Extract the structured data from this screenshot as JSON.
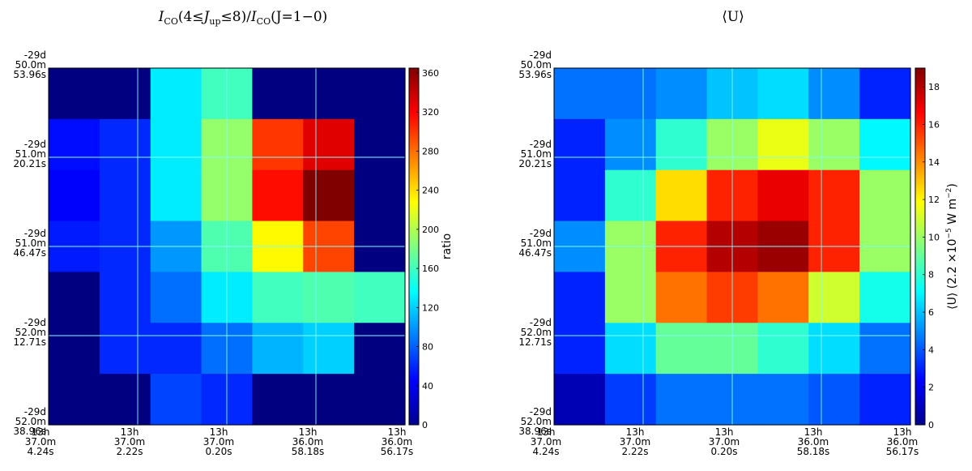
{
  "chart_data": [
    {
      "type": "heatmap",
      "title": "I_CO(4≤J_up≤8)/I_CO(J=1−0)",
      "title_math": {
        "main": "I",
        "sub1": "CO",
        "mid": "(4≤",
        "j": "J",
        "sub2": "up",
        "mid2": "≤8)/",
        "main2": "I",
        "sub3": "CO",
        "tail": "(J=1−0)"
      },
      "colorbar_label": "ratio",
      "colorbar_ticks": [
        "0",
        "40",
        "80",
        "120",
        "160",
        "200",
        "240",
        "280",
        "320",
        "360"
      ],
      "value_range": [
        0,
        365
      ],
      "colormap": "jet",
      "x_ticks": [
        [
          "13h",
          "37.0m",
          "4.24s"
        ],
        [
          "13h",
          "37.0m",
          "2.22s"
        ],
        [
          "13h",
          "37.0m",
          "0.20s"
        ],
        [
          "13h",
          "36.0m",
          "58.18s"
        ],
        [
          "13h",
          "36.0m",
          "56.17s"
        ]
      ],
      "y_ticks": [
        [
          "-29d",
          "50.0m",
          "53.96s"
        ],
        [
          "-29d",
          "51.0m",
          "20.21s"
        ],
        [
          "-29d",
          "51.0m",
          "46.47s"
        ],
        [
          "-29d",
          "52.0m",
          "12.71s"
        ],
        [
          "-29d",
          "52.0m",
          "38.96s"
        ]
      ],
      "rows": [
        [
          0,
          0,
          130,
          160,
          0,
          0,
          0
        ],
        [
          50,
          60,
          130,
          190,
          300,
          330,
          0
        ],
        [
          45,
          60,
          130,
          190,
          315,
          365,
          0
        ],
        [
          55,
          60,
          100,
          165,
          230,
          295,
          0
        ],
        [
          0,
          60,
          85,
          130,
          160,
          165,
          160
        ],
        [
          0,
          60,
          60,
          85,
          110,
          120,
          0
        ],
        [
          0,
          0,
          70,
          60,
          0,
          0,
          0
        ]
      ]
    },
    {
      "type": "heatmap",
      "title": "⟨U⟩",
      "colorbar_label": "⟨U⟩ (2.2×10⁻⁵ W m⁻²)",
      "colorbar_label_parts": {
        "a": "⟨U⟩ (2.2 ×10",
        "exp1": "−5",
        "b": " W m",
        "exp2": "−2",
        "c": ")"
      },
      "colorbar_ticks": [
        "0",
        "2",
        "4",
        "6",
        "8",
        "10",
        "12",
        "14",
        "16",
        "18"
      ],
      "value_range": [
        0,
        19
      ],
      "colormap": "jet",
      "x_ticks": [
        [
          "13h",
          "37.0m",
          "4.24s"
        ],
        [
          "13h",
          "37.0m",
          "2.22s"
        ],
        [
          "13h",
          "37.0m",
          "0.20s"
        ],
        [
          "13h",
          "36.0m",
          "58.18s"
        ],
        [
          "13h",
          "36.0m",
          "56.17s"
        ]
      ],
      "y_ticks": [
        [
          "-29d",
          "50.0m",
          "53.96s"
        ],
        [
          "-29d",
          "51.0m",
          "20.21s"
        ],
        [
          "-29d",
          "51.0m",
          "46.47s"
        ],
        [
          "-29d",
          "52.0m",
          "12.71s"
        ],
        [
          "-29d",
          "52.0m",
          "38.96s"
        ]
      ],
      "rows": [
        [
          4.5,
          4.5,
          5,
          6,
          6.5,
          5,
          3
        ],
        [
          3,
          5,
          8,
          10,
          11.5,
          10,
          7
        ],
        [
          3,
          8,
          12.5,
          16,
          17,
          16,
          10
        ],
        [
          5,
          10,
          16,
          18,
          18.5,
          16,
          10
        ],
        [
          3,
          10,
          14.5,
          15.5,
          14.5,
          11,
          7.5
        ],
        [
          3,
          6.5,
          9,
          9,
          8,
          6.5,
          4.5
        ],
        [
          1,
          3.5,
          4.5,
          4.5,
          4.5,
          4,
          3
        ]
      ]
    }
  ]
}
